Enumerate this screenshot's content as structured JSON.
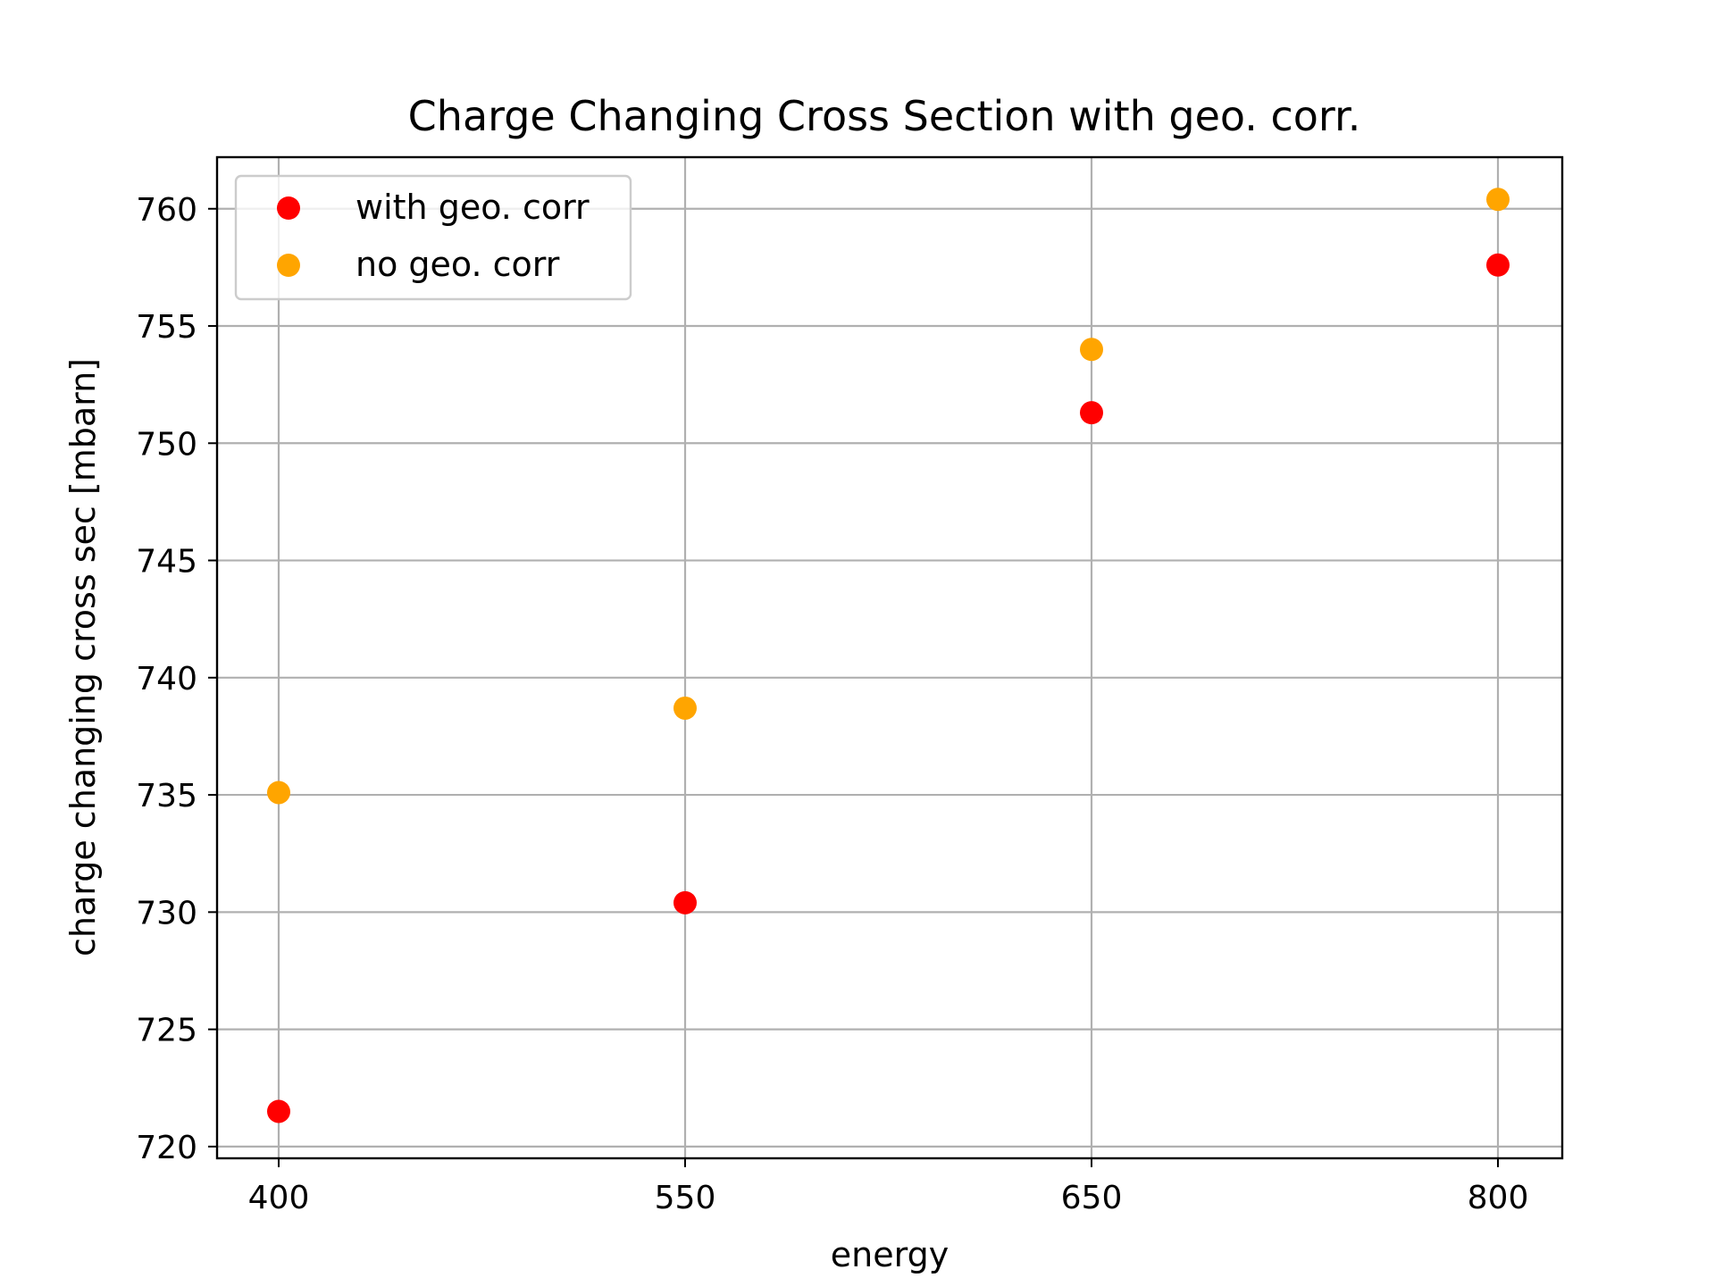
{
  "chart_data": {
    "type": "scatter",
    "title": "Charge Changing Cross Section with geo. corr.",
    "xlabel": "energy",
    "ylabel": "charge changing cross sec [mbarn]",
    "x_categories": [
      "400",
      "550",
      "650",
      "800"
    ],
    "y_ticks": [
      720,
      725,
      730,
      735,
      740,
      745,
      750,
      755,
      760
    ],
    "ylim": [
      719.5,
      762.2
    ],
    "grid": true,
    "legend_position": "upper-left",
    "series": [
      {
        "name": "with geo. corr",
        "color": "#ff0000",
        "points": [
          {
            "x": "400",
            "y": 721.5
          },
          {
            "x": "550",
            "y": 730.4
          },
          {
            "x": "650",
            "y": 751.3
          },
          {
            "x": "800",
            "y": 757.6
          }
        ]
      },
      {
        "name": "no geo. corr",
        "color": "#ffa500",
        "points": [
          {
            "x": "400",
            "y": 735.1
          },
          {
            "x": "550",
            "y": 738.7
          },
          {
            "x": "650",
            "y": 754.0
          },
          {
            "x": "800",
            "y": 760.4
          }
        ]
      }
    ]
  }
}
